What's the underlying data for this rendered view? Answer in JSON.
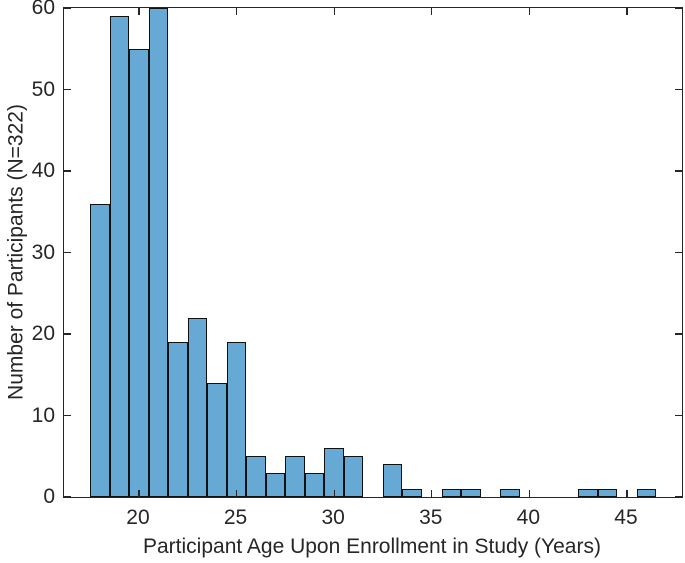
{
  "chart_data": {
    "type": "bar",
    "subtype": "histogram",
    "title": "",
    "xlabel": "Participant Age Upon Enrollment in Study (Years)",
    "ylabel": "Number of Participants (N=322)",
    "total_n": 322,
    "bin_width": 1,
    "bin_centers": [
      18,
      19,
      20,
      21,
      22,
      23,
      24,
      25,
      26,
      27,
      28,
      29,
      30,
      31,
      32,
      33,
      34,
      35,
      36,
      37,
      38,
      39,
      40,
      41,
      42,
      43,
      44,
      45,
      46
    ],
    "counts": [
      36,
      59,
      55,
      60,
      19,
      22,
      14,
      19,
      5,
      3,
      5,
      3,
      6,
      5,
      0,
      4,
      1,
      0,
      1,
      1,
      0,
      1,
      0,
      0,
      0,
      1,
      1,
      0,
      1
    ],
    "x_ticks": [
      20,
      25,
      30,
      35,
      40,
      45
    ],
    "y_ticks": [
      0,
      10,
      20,
      30,
      40,
      50,
      60
    ],
    "xlim": [
      16.16,
      47.82
    ],
    "ylim": [
      0,
      60
    ],
    "grid": false,
    "legend": null,
    "box": true,
    "tick_direction": "in",
    "colors": {
      "bar_fill": "#66A9D4",
      "bar_edge": "#111111",
      "axis": "#262626",
      "text": "#262626",
      "background": "#FFFFFF"
    }
  }
}
